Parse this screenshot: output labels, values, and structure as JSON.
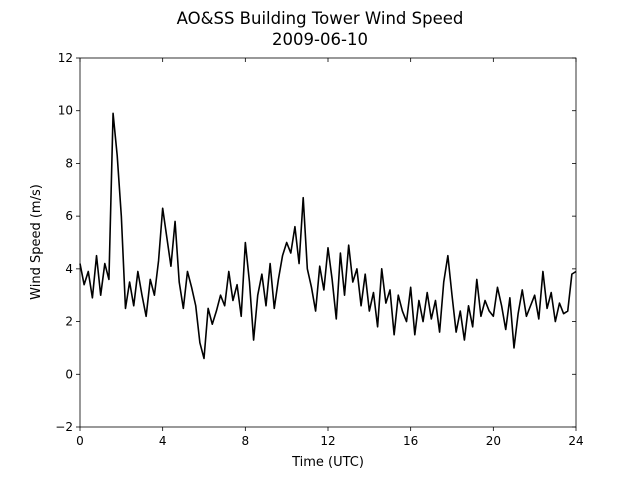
{
  "chart_data": {
    "type": "line",
    "title": "AO&SS Building Tower Wind Speed",
    "subtitle": "2009-06-10",
    "x_label": "Time (UTC)",
    "y_label": "Wind Speed (m/s)",
    "color": "#000000",
    "x": [
      0,
      0.2,
      0.4,
      0.6,
      0.8,
      1,
      1.2,
      1.4,
      1.6,
      1.8,
      2,
      2.2,
      2.4,
      2.6,
      2.8,
      3,
      3.2,
      3.4,
      3.6,
      3.8,
      4,
      4.2,
      4.4,
      4.6,
      4.8,
      5,
      5.2,
      5.4,
      5.6,
      5.8,
      6,
      6.2,
      6.4,
      6.6,
      6.8,
      7,
      7.2,
      7.4,
      7.6,
      7.8,
      8,
      8.2,
      8.4,
      8.6,
      8.8,
      9,
      9.2,
      9.4,
      9.6,
      9.8,
      10,
      10.2,
      10.4,
      10.6,
      10.8,
      11,
      11.2,
      11.4,
      11.6,
      11.8,
      12,
      12.2,
      12.4,
      12.6,
      12.8,
      13,
      13.2,
      13.4,
      13.6,
      13.8,
      14,
      14.2,
      14.4,
      14.6,
      14.8,
      15,
      15.2,
      15.4,
      15.6,
      15.8,
      16,
      16.2,
      16.4,
      16.6,
      16.8,
      17,
      17.2,
      17.4,
      17.6,
      17.8,
      18,
      18.2,
      18.4,
      18.6,
      18.8,
      19,
      19.2,
      19.4,
      19.6,
      19.8,
      20,
      20.2,
      20.4,
      20.6,
      20.8,
      21,
      21.2,
      21.4,
      21.6,
      21.8,
      22,
      22.2,
      22.4,
      22.6,
      22.8,
      23,
      23.2,
      23.4,
      23.6,
      23.8,
      24
    ],
    "values": [
      4.2,
      3.4,
      3.9,
      2.9,
      4.5,
      3.0,
      4.2,
      3.6,
      9.9,
      8.3,
      6.0,
      2.5,
      3.5,
      2.6,
      3.9,
      3.0,
      2.2,
      3.6,
      3.0,
      4.3,
      6.3,
      5.2,
      4.1,
      5.8,
      3.5,
      2.5,
      3.9,
      3.3,
      2.6,
      1.2,
      0.6,
      2.5,
      1.9,
      2.4,
      3.0,
      2.6,
      3.9,
      2.8,
      3.4,
      2.2,
      5.0,
      3.5,
      1.3,
      3.0,
      3.8,
      2.6,
      4.2,
      2.5,
      3.6,
      4.5,
      5.0,
      4.6,
      5.6,
      4.2,
      6.7,
      4.0,
      3.3,
      2.4,
      4.1,
      3.2,
      4.8,
      3.6,
      2.1,
      4.6,
      3.0,
      4.9,
      3.5,
      4.0,
      2.6,
      3.8,
      2.4,
      3.1,
      1.8,
      4.0,
      2.7,
      3.2,
      1.5,
      3.0,
      2.4,
      2.0,
      3.3,
      1.5,
      2.8,
      2.0,
      3.1,
      2.1,
      2.8,
      1.6,
      3.5,
      4.5,
      3.0,
      1.6,
      2.4,
      1.3,
      2.6,
      1.8,
      3.6,
      2.2,
      2.8,
      2.4,
      2.2,
      3.3,
      2.6,
      1.7,
      2.9,
      1.0,
      2.3,
      3.2,
      2.2,
      2.6,
      3.0,
      2.1,
      3.9,
      2.5,
      3.1,
      2.0,
      2.7,
      2.3,
      2.4,
      3.8,
      3.9
    ],
    "xlim": [
      0,
      24
    ],
    "xticks": [
      0,
      4,
      8,
      12,
      16,
      20,
      24
    ],
    "ylim": [
      -2,
      12
    ],
    "yticks": [
      {
        "value": -2,
        "label": "−2"
      },
      0,
      2,
      4,
      6,
      8,
      10,
      12
    ]
  }
}
